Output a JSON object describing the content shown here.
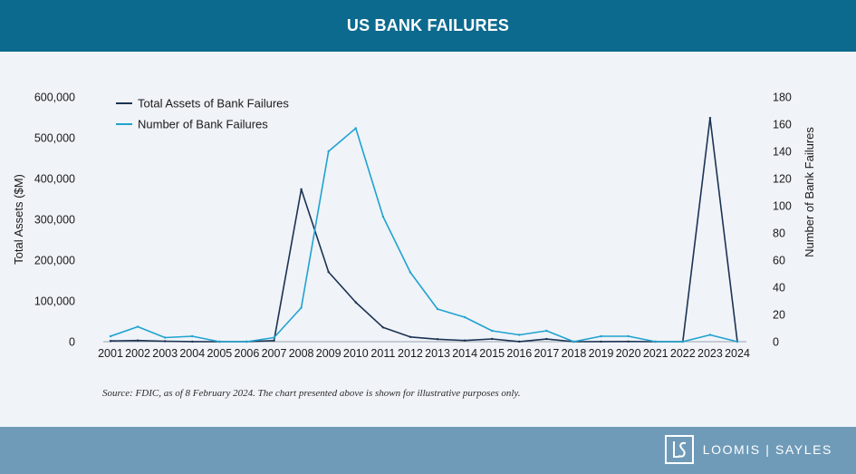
{
  "header": {
    "title": "US BANK FAILURES"
  },
  "source_note": "Source: FDIC, as of 8 February 2024.  The chart presented above is shown for illustrative purposes only.",
  "footer": {
    "logo_text": "LOOMIS | SAYLES"
  },
  "colors": {
    "header": "#0c6a8e",
    "footer": "#6f9bb8",
    "assets_line": "#1c3353",
    "count_line": "#1fa3cf"
  },
  "chart_data": {
    "type": "line",
    "categories": [
      "2001",
      "2002",
      "2003",
      "2004",
      "2005",
      "2006",
      "2007",
      "2008",
      "2009",
      "2010",
      "2011",
      "2012",
      "2013",
      "2014",
      "2015",
      "2016",
      "2017",
      "2018",
      "2019",
      "2020",
      "2021",
      "2022",
      "2023",
      "2024"
    ],
    "series": [
      {
        "name": "Total Assets of Bank Failures",
        "axis": "left",
        "color": "#1c3353",
        "values": [
          1800,
          2900,
          1100,
          170,
          0,
          0,
          2600,
          373600,
          170900,
          96500,
          34900,
          11600,
          6100,
          2900,
          6700,
          300,
          6500,
          0,
          200,
          500,
          0,
          0,
          548500,
          0
        ]
      },
      {
        "name": "Number of Bank Failures",
        "axis": "right",
        "color": "#1fa3cf",
        "values": [
          4,
          11,
          3,
          4,
          0,
          0,
          3,
          25,
          140,
          157,
          92,
          51,
          24,
          18,
          8,
          5,
          8,
          0,
          4,
          4,
          0,
          0,
          5,
          0
        ]
      }
    ],
    "y_left": {
      "label": "Total Assets ($M)",
      "ylim": [
        0,
        600000
      ],
      "ticks": [
        "0",
        "100,000",
        "200,000",
        "300,000",
        "400,000",
        "500,000",
        "600,000"
      ]
    },
    "y_right": {
      "label": "Number of Bank Failures",
      "ylim": [
        0,
        180
      ],
      "ticks": [
        "0",
        "20",
        "40",
        "60",
        "80",
        "100",
        "120",
        "140",
        "160",
        "180"
      ]
    },
    "legend": {
      "placement": "top-left"
    },
    "grid": false
  }
}
